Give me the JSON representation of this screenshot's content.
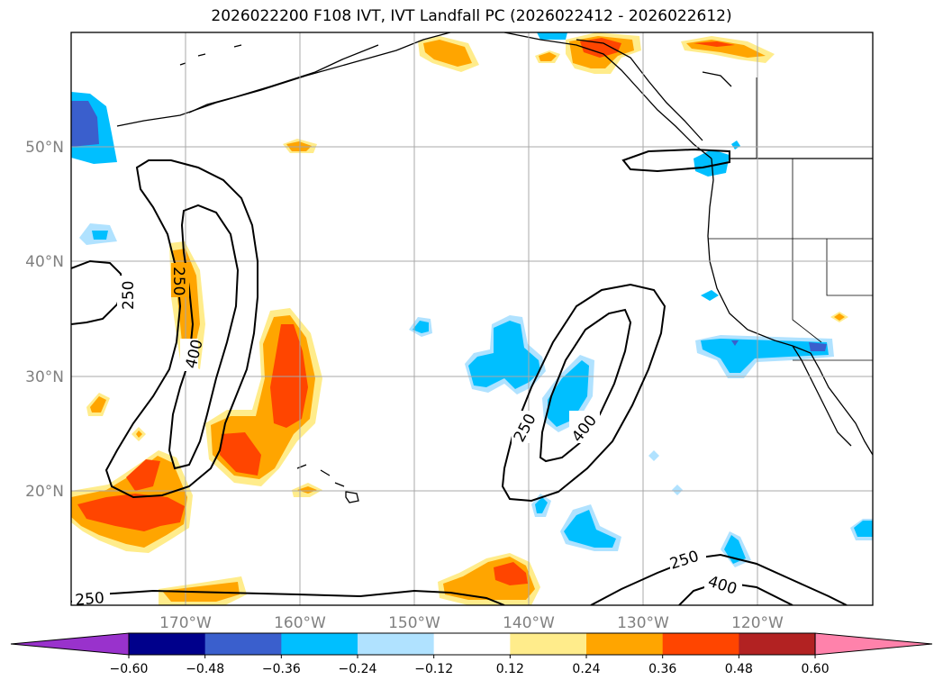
{
  "title": "2026022200 F108 IVT, IVT Landfall PC (2026022412 - 2026022612)",
  "map": {
    "lon_range": [
      -180,
      -110
    ],
    "lat_range": [
      10,
      60
    ],
    "lon_ticks": [
      "170°W",
      "160°W",
      "150°W",
      "140°W",
      "130°W",
      "120°W"
    ],
    "lat_ticks": [
      "50°N",
      "40°N",
      "30°N",
      "20°N"
    ],
    "grid": true,
    "contour_levels": [
      "250",
      "400"
    ]
  },
  "colorbar": {
    "extend": "both",
    "colors": [
      "#9932CC",
      "#00008B",
      "#3A5FCD",
      "#00BFFF",
      "#B0E2FF",
      "#FFFFFF",
      "#FFEC8B",
      "#FFA500",
      "#FF4500",
      "#B22222",
      "#FF82AB"
    ],
    "tick_labels": [
      "−0.60",
      "−0.48",
      "−0.36",
      "−0.24",
      "−0.12",
      "0.12",
      "0.24",
      "0.36",
      "0.48",
      "0.60"
    ]
  }
}
